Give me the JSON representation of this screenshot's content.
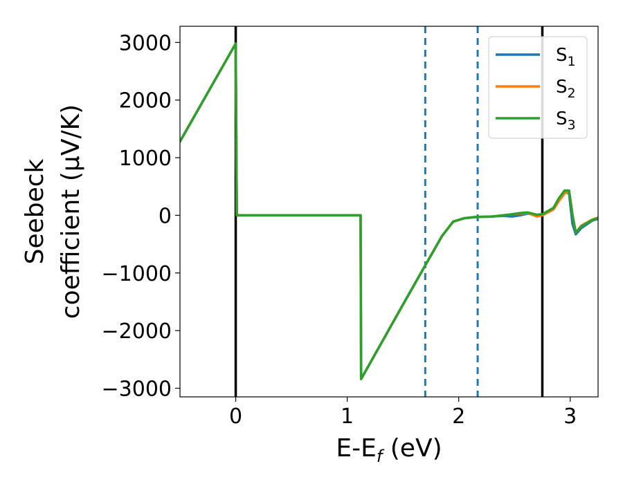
{
  "chart_data": {
    "type": "line",
    "xlabel": "E-E",
    "xlabel_sub": "f",
    "xlabel_unit": " (eV)",
    "ylabel_line1": "Seebeck",
    "ylabel_line2": "coefficient  (μV/K)",
    "xlim": [
      -0.5,
      3.25
    ],
    "ylim": [
      -3150,
      3280
    ],
    "xticks": [
      0,
      1,
      2,
      3
    ],
    "yticks": [
      3000,
      2000,
      1000,
      0,
      -1000,
      -2000,
      -3000
    ],
    "ytick_labels": [
      "3000",
      "2000",
      "1000",
      "0",
      "−1000",
      "−2000",
      "−3000"
    ],
    "grid": false,
    "legend_position": "top-right",
    "series": [
      {
        "name": "S",
        "sub": "1",
        "color": "#1f77b4",
        "x": [
          -0.5,
          0.0,
          0.01,
          1.12,
          1.125,
          1.5,
          1.7,
          1.85,
          1.95,
          2.05,
          2.15,
          2.3,
          2.4,
          2.48,
          2.55,
          2.62,
          2.7,
          2.75,
          2.85,
          2.9,
          2.95,
          2.99,
          3.02,
          3.05,
          3.1,
          3.2,
          3.25
        ],
        "y": [
          1280,
          2980,
          0,
          0,
          -2840,
          -1550,
          -870,
          -360,
          -110,
          -50,
          -30,
          -20,
          -10,
          -20,
          0,
          30,
          0,
          10,
          120,
          270,
          400,
          380,
          -150,
          -330,
          -220,
          -90,
          -60
        ]
      },
      {
        "name": "S",
        "sub": "2",
        "color": "#ff7f0e",
        "x": [
          -0.5,
          0.0,
          0.01,
          1.12,
          1.125,
          1.5,
          1.7,
          1.85,
          1.95,
          2.05,
          2.15,
          2.3,
          2.4,
          2.48,
          2.55,
          2.62,
          2.7,
          2.75,
          2.85,
          2.9,
          2.95,
          2.99,
          3.02,
          3.05,
          3.1,
          3.2,
          3.25
        ],
        "y": [
          1280,
          2980,
          0,
          0,
          -2840,
          -1550,
          -870,
          -360,
          -110,
          -50,
          -30,
          -20,
          0,
          20,
          30,
          40,
          -20,
          0,
          100,
          250,
          380,
          420,
          20,
          -300,
          -180,
          -70,
          -40
        ]
      },
      {
        "name": "S",
        "sub": "3",
        "color": "#2ca02c",
        "x": [
          -0.5,
          0.0,
          0.01,
          1.12,
          1.125,
          1.5,
          1.7,
          1.85,
          1.95,
          2.05,
          2.15,
          2.3,
          2.4,
          2.48,
          2.55,
          2.62,
          2.7,
          2.75,
          2.85,
          2.9,
          2.95,
          2.99,
          3.02,
          3.05,
          3.1,
          3.2,
          3.25
        ],
        "y": [
          1280,
          2980,
          0,
          0,
          -2840,
          -1550,
          -870,
          -360,
          -110,
          -50,
          -30,
          -20,
          0,
          20,
          40,
          50,
          10,
          20,
          130,
          300,
          430,
          430,
          0,
          -300,
          -190,
          -80,
          -50
        ]
      }
    ],
    "vlines": [
      {
        "x": 0.0,
        "color": "#000000",
        "style": "solid"
      },
      {
        "x": 2.75,
        "color": "#000000",
        "style": "solid"
      },
      {
        "x": 1.7,
        "color": "#1f77b4",
        "style": "dashed"
      },
      {
        "x": 2.17,
        "color": "#1f77b4",
        "style": "dashed"
      }
    ]
  }
}
